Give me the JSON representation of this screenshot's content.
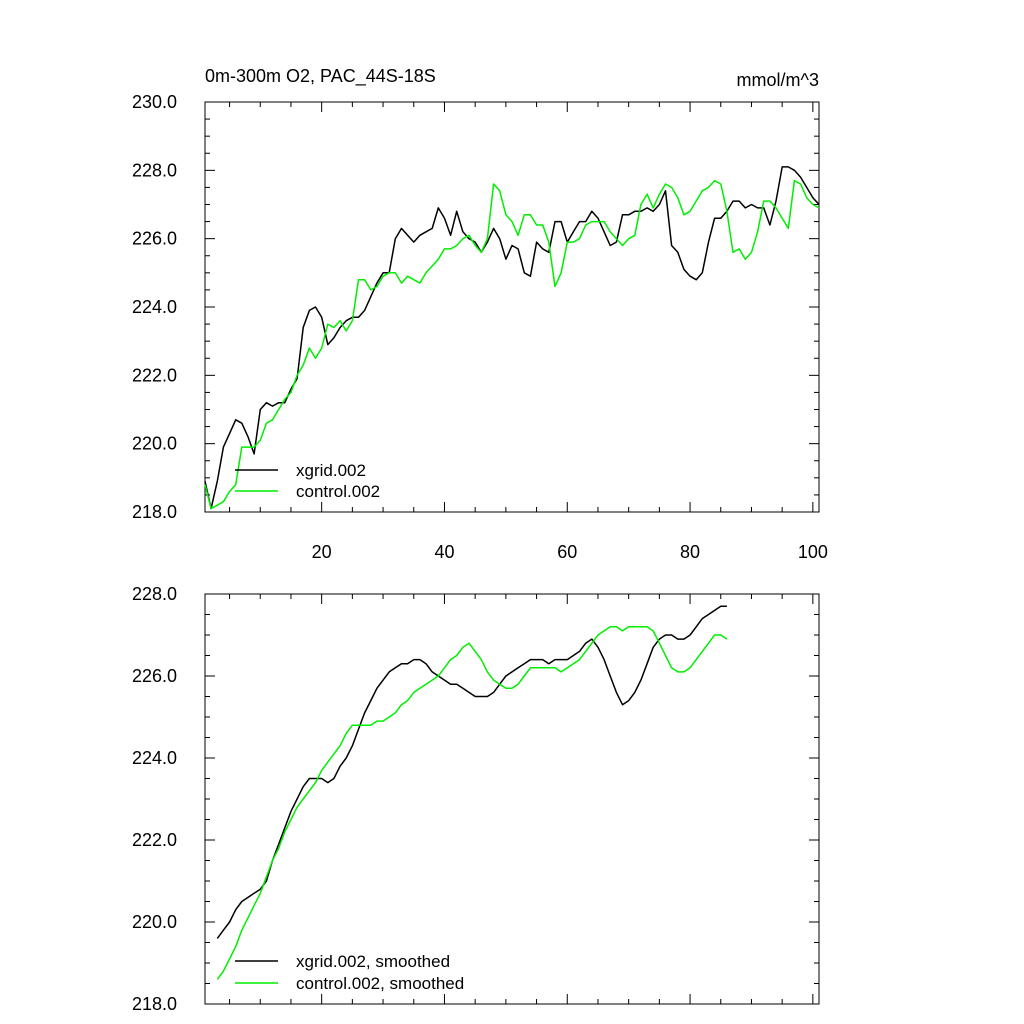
{
  "chart_data": [
    {
      "type": "line",
      "title": "0m-300m O2, PAC_44S-18S",
      "units": "mmol/m^3",
      "xlim": [
        1,
        101
      ],
      "ylim": [
        218,
        230
      ],
      "x_ticks": [
        20,
        40,
        60,
        80,
        100
      ],
      "x_tick_labels": [
        "20",
        "40",
        "60",
        "80",
        "100"
      ],
      "y_ticks": [
        218,
        220,
        222,
        224,
        226,
        228,
        230
      ],
      "y_tick_labels": [
        "218.0",
        "220.0",
        "222.0",
        "224.0",
        "226.0",
        "228.0",
        "230.0"
      ],
      "legend_position": "bottom-left",
      "series": [
        {
          "name": "xgrid.002",
          "color": "#000000",
          "x_start": 1,
          "values": [
            218.9,
            218.1,
            218.9,
            219.9,
            220.3,
            220.7,
            220.6,
            220.2,
            219.7,
            221.0,
            221.2,
            221.1,
            221.2,
            221.2,
            221.6,
            221.9,
            223.4,
            223.9,
            224.0,
            223.7,
            222.9,
            223.1,
            223.4,
            223.6,
            223.7,
            223.7,
            223.9,
            224.3,
            224.7,
            225.0,
            225.0,
            226.0,
            226.3,
            226.1,
            225.9,
            226.1,
            226.2,
            226.3,
            226.9,
            226.6,
            226.1,
            226.8,
            226.2,
            226.0,
            225.9,
            225.6,
            225.9,
            226.3,
            226.0,
            225.4,
            225.8,
            225.7,
            225.0,
            224.9,
            225.9,
            225.7,
            225.6,
            226.5,
            226.5,
            225.9,
            226.2,
            226.5,
            226.5,
            226.8,
            226.6,
            226.2,
            225.8,
            225.9,
            226.7,
            226.7,
            226.8,
            226.8,
            226.9,
            226.8,
            227.0,
            227.4,
            225.8,
            225.6,
            225.1,
            224.9,
            224.8,
            225.0,
            225.9,
            226.6,
            226.6,
            226.8,
            227.1,
            227.1,
            226.9,
            227.0,
            226.9,
            226.9,
            226.4,
            227.1,
            228.1,
            228.1,
            228.0,
            227.8,
            227.5,
            227.2,
            227.0
          ]
        },
        {
          "name": "control.002",
          "color": "#00ee00",
          "x_start": 1,
          "values": [
            218.8,
            218.1,
            218.2,
            218.3,
            218.6,
            218.8,
            219.9,
            219.9,
            219.9,
            220.1,
            220.6,
            220.7,
            221.0,
            221.3,
            221.5,
            222.0,
            222.3,
            222.8,
            222.5,
            222.8,
            223.5,
            223.4,
            223.6,
            223.3,
            223.6,
            224.8,
            224.8,
            224.5,
            224.6,
            224.9,
            225.0,
            225.0,
            224.7,
            224.9,
            224.8,
            224.7,
            225.0,
            225.2,
            225.4,
            225.7,
            225.7,
            225.8,
            226.0,
            226.1,
            225.8,
            225.6,
            226.0,
            227.6,
            227.4,
            226.7,
            226.5,
            226.1,
            226.7,
            226.7,
            226.4,
            226.4,
            225.9,
            224.6,
            225.0,
            225.9,
            225.9,
            226.0,
            226.4,
            226.5,
            226.5,
            226.5,
            226.2,
            226.0,
            225.8,
            226.0,
            226.1,
            227.0,
            227.3,
            226.9,
            227.3,
            227.6,
            227.5,
            227.2,
            226.7,
            226.8,
            227.1,
            227.4,
            227.5,
            227.7,
            227.6,
            226.8,
            225.6,
            225.7,
            225.4,
            225.6,
            226.2,
            227.1,
            227.1,
            226.9,
            226.6,
            226.3,
            227.7,
            227.6,
            227.2,
            227.0,
            226.9
          ]
        }
      ]
    },
    {
      "type": "line",
      "title": "",
      "xlim": [
        1,
        101
      ],
      "ylim": [
        218,
        228
      ],
      "x_ticks": [
        20,
        40,
        60,
        80,
        100
      ],
      "y_ticks": [
        218,
        220,
        222,
        224,
        226,
        228
      ],
      "y_tick_labels": [
        "218.0",
        "220.0",
        "222.0",
        "224.0",
        "226.0",
        "228.0"
      ],
      "legend_position": "bottom-left",
      "series": [
        {
          "name": "xgrid.002, smoothed",
          "color": "#000000",
          "x_start": 3,
          "values": [
            219.6,
            219.8,
            220.0,
            220.3,
            220.5,
            220.6,
            220.7,
            220.8,
            221.0,
            221.5,
            221.9,
            222.3,
            222.7,
            223.0,
            223.3,
            223.5,
            223.5,
            223.5,
            223.4,
            223.5,
            223.8,
            224.0,
            224.3,
            224.7,
            225.1,
            225.4,
            225.7,
            225.9,
            226.1,
            226.2,
            226.3,
            226.3,
            226.4,
            226.4,
            226.3,
            226.1,
            226.0,
            225.9,
            225.8,
            225.8,
            225.7,
            225.6,
            225.5,
            225.5,
            225.5,
            225.6,
            225.8,
            226.0,
            226.1,
            226.2,
            226.3,
            226.4,
            226.4,
            226.4,
            226.3,
            226.4,
            226.4,
            226.4,
            226.5,
            226.6,
            226.8,
            226.9,
            226.7,
            226.4,
            226.0,
            225.6,
            225.3,
            225.4,
            225.6,
            225.9,
            226.3,
            226.7,
            226.9,
            227.0,
            227.0,
            226.9,
            226.9,
            227.0,
            227.2,
            227.4,
            227.5,
            227.6,
            227.7,
            227.7
          ]
        },
        {
          "name": "control.002, smoothed",
          "color": "#00ee00",
          "x_start": 3,
          "values": [
            218.6,
            218.8,
            219.1,
            219.4,
            219.8,
            220.1,
            220.4,
            220.7,
            221.1,
            221.5,
            221.8,
            222.2,
            222.5,
            222.8,
            223.0,
            223.2,
            223.4,
            223.7,
            223.9,
            224.1,
            224.3,
            224.6,
            224.8,
            224.8,
            224.8,
            224.8,
            224.9,
            224.9,
            225.0,
            225.1,
            225.3,
            225.4,
            225.6,
            225.7,
            225.8,
            225.9,
            226.0,
            226.2,
            226.4,
            226.5,
            226.7,
            226.8,
            226.6,
            226.4,
            226.1,
            225.9,
            225.8,
            225.7,
            225.7,
            225.8,
            226.0,
            226.2,
            226.2,
            226.2,
            226.2,
            226.2,
            226.1,
            226.2,
            226.3,
            226.4,
            226.6,
            226.8,
            227.0,
            227.1,
            227.2,
            227.2,
            227.1,
            227.2,
            227.2,
            227.2,
            227.2,
            227.1,
            226.8,
            226.5,
            226.2,
            226.1,
            226.1,
            226.2,
            226.4,
            226.6,
            226.8,
            227.0,
            227.0,
            226.9
          ]
        }
      ]
    }
  ]
}
